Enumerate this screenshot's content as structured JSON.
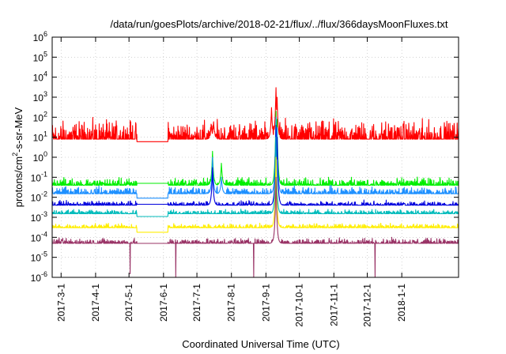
{
  "chart_data": {
    "type": "line",
    "title": "/data/run/goesPlots/archive/2018-02-21/flux/../flux/366daysMoonFluxes.txt",
    "xlabel": "Coordinated Universal Time (UTC)",
    "ylabel": "protons/cm²-s-sr-MeV",
    "ylim": [
      1e-06,
      1000000.0
    ],
    "yscale": "log",
    "xlim": [
      "2017-02-21",
      "2018-02-21"
    ],
    "grid": true,
    "y_ticks": [
      {
        "value": 1e-06,
        "base": "10",
        "exp": "-6"
      },
      {
        "value": 1e-05,
        "base": "10",
        "exp": "-5"
      },
      {
        "value": 0.0001,
        "base": "10",
        "exp": "-4"
      },
      {
        "value": 0.001,
        "base": "10",
        "exp": "-3"
      },
      {
        "value": 0.01,
        "base": "10",
        "exp": "-2"
      },
      {
        "value": 0.1,
        "base": "10",
        "exp": "-1"
      },
      {
        "value": 1,
        "base": "10",
        "exp": "0"
      },
      {
        "value": 10,
        "base": "10",
        "exp": "1"
      },
      {
        "value": 100,
        "base": "10",
        "exp": "2"
      },
      {
        "value": 1000,
        "base": "10",
        "exp": "3"
      },
      {
        "value": 10000.0,
        "base": "10",
        "exp": "4"
      },
      {
        "value": 100000.0,
        "base": "10",
        "exp": "5"
      },
      {
        "value": 1000000.0,
        "base": "10",
        "exp": "6"
      }
    ],
    "x_ticks": [
      {
        "date": "2017-03-01",
        "label": "2017-3-1"
      },
      {
        "date": "2017-04-01",
        "label": "2017-4-1"
      },
      {
        "date": "2017-05-01",
        "label": "2017-5-1"
      },
      {
        "date": "2017-06-01",
        "label": "2017-6-1"
      },
      {
        "date": "2017-07-01",
        "label": "2017-7-1"
      },
      {
        "date": "2017-08-01",
        "label": "2017-8-1"
      },
      {
        "date": "2017-09-01",
        "label": "2017-9-1"
      },
      {
        "date": "2017-10-01",
        "label": "2017-10-1"
      },
      {
        "date": "2017-11-01",
        "label": "2017-11-1"
      },
      {
        "date": "2017-12-01",
        "label": "2017-12-1"
      },
      {
        "date": "2018-01-01",
        "label": "2018-1-1"
      }
    ],
    "data_gap": [
      "2017-05-08",
      "2017-06-05"
    ],
    "series": [
      {
        "color": "#ff0000",
        "baseline": 8,
        "gap_value": 6,
        "noise_decades": 0.9,
        "spikes": [
          {
            "date": "2017-07-16",
            "value": 60
          },
          {
            "date": "2017-07-14",
            "value": 40
          },
          {
            "date": "2017-09-10",
            "value": 3000
          },
          {
            "date": "2017-09-11",
            "value": 1000
          },
          {
            "date": "2017-09-06",
            "value": 300
          }
        ]
      },
      {
        "color": "#00ee00",
        "baseline": 0.04,
        "gap_value": 0.05,
        "noise_decades": 0.35,
        "spikes": [
          {
            "date": "2017-07-15",
            "value": 2
          },
          {
            "date": "2017-07-23",
            "value": 0.5
          },
          {
            "date": "2017-09-10",
            "value": 200
          },
          {
            "date": "2017-09-11",
            "value": 80
          }
        ]
      },
      {
        "color": "#1e90ff",
        "baseline": 0.015,
        "gap_value": 0.009,
        "noise_decades": 0.35,
        "spikes": [
          {
            "date": "2017-07-15",
            "value": 1
          },
          {
            "date": "2017-07-23",
            "value": 0.1
          },
          {
            "date": "2017-09-10",
            "value": 100
          },
          {
            "date": "2017-09-11",
            "value": 30
          }
        ]
      },
      {
        "color": "#0000dd",
        "baseline": 0.004,
        "gap_value": 0.0045,
        "noise_decades": 0.2,
        "spikes": [
          {
            "date": "2017-07-15",
            "value": 0.3
          },
          {
            "date": "2017-09-10",
            "value": 40
          },
          {
            "date": "2017-09-11",
            "value": 10
          }
        ]
      },
      {
        "color": "#00bbbb",
        "baseline": 0.0015,
        "gap_value": 0.0011,
        "noise_decades": 0.2,
        "spikes": [
          {
            "date": "2017-09-10",
            "value": 10
          }
        ]
      },
      {
        "color": "#ffee00",
        "baseline": 0.0003,
        "gap_value": 0.00018,
        "noise_decades": 0.2,
        "spikes": [
          {
            "date": "2017-09-10",
            "value": 1
          }
        ]
      },
      {
        "color": "#993366",
        "baseline": 5e-05,
        "gap_value": 5e-05,
        "noise_decades": 0.25,
        "spikes": [
          {
            "date": "2017-09-10",
            "value": 0.1
          }
        ],
        "dips": [
          {
            "date": "2017-05-02",
            "value": 1.5e-06
          },
          {
            "date": "2017-06-12",
            "value": 1e-06
          },
          {
            "date": "2017-08-21",
            "value": 1e-06
          },
          {
            "date": "2017-12-08",
            "value": 1e-06
          }
        ]
      }
    ]
  }
}
